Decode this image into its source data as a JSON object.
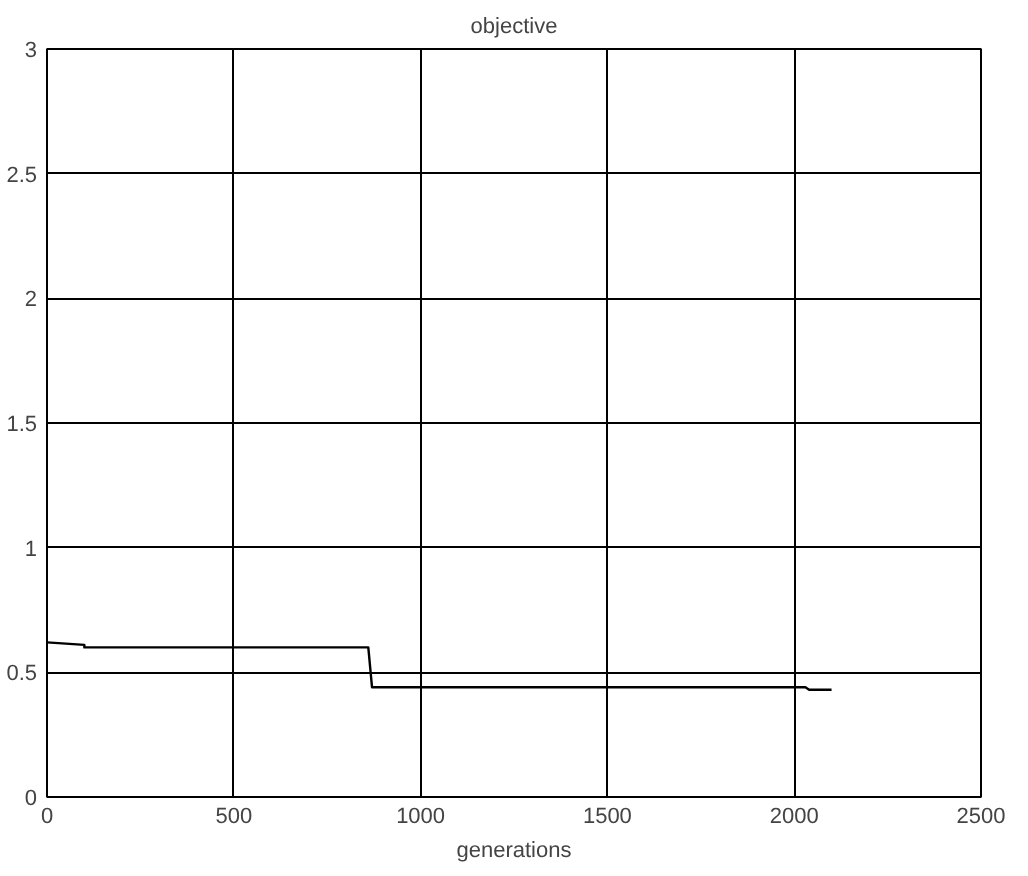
{
  "chart_data": {
    "type": "line",
    "title": "objective",
    "xlabel": "generations",
    "x": [
      0,
      100,
      100,
      860,
      870,
      2030,
      2040,
      2100
    ],
    "series": [
      {
        "color": "#000000",
        "values": [
          0.62,
          0.61,
          0.6,
          0.6,
          0.44,
          0.44,
          0.43,
          0.43
        ]
      }
    ],
    "xlim": [
      0,
      2500
    ],
    "xticks": [
      0,
      500,
      1000,
      1500,
      2000,
      2500
    ],
    "ylim": [
      0,
      3
    ],
    "yticks": [
      0,
      0.5,
      1,
      1.5,
      2,
      2.5,
      3
    ],
    "grid": true
  }
}
